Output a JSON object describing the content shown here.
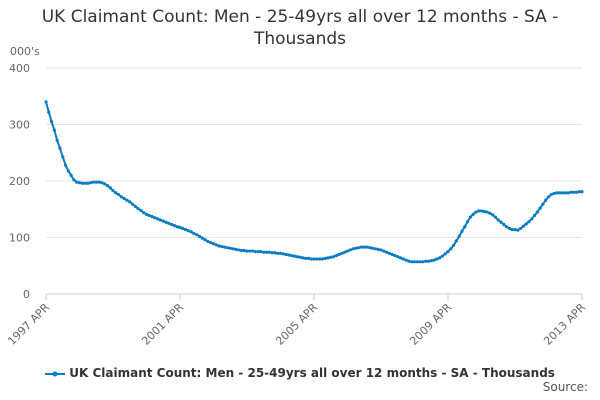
{
  "chart_data": {
    "type": "line",
    "title": "UK Claimant Count: Men - 25-49yrs all over 12 months - SA - Thousands",
    "y_label": "000's",
    "source": "Source:",
    "categories": [
      "1997 APR",
      null,
      null,
      null,
      null,
      null,
      null,
      null,
      null,
      null,
      null,
      null,
      null,
      null,
      null,
      null,
      null,
      null,
      null,
      null,
      null,
      null,
      null,
      null,
      null,
      null,
      null,
      null,
      null,
      null,
      null,
      null,
      null,
      null,
      null,
      null,
      null,
      null,
      null,
      null,
      null,
      null,
      null,
      null,
      null,
      null,
      null,
      null,
      "2001 APR",
      null,
      null,
      null,
      null,
      null,
      null,
      null,
      null,
      null,
      null,
      null,
      null,
      null,
      null,
      null,
      null,
      null,
      null,
      null,
      null,
      null,
      null,
      null,
      null,
      null,
      null,
      null,
      null,
      null,
      null,
      null,
      null,
      null,
      null,
      null,
      null,
      null,
      null,
      null,
      null,
      null,
      null,
      null,
      null,
      null,
      null,
      null,
      "2005 APR",
      null,
      null,
      null,
      null,
      null,
      null,
      null,
      null,
      null,
      null,
      null,
      null,
      null,
      null,
      null,
      null,
      null,
      null,
      null,
      null,
      null,
      null,
      null,
      null,
      null,
      null,
      null,
      null,
      null,
      null,
      null,
      null,
      null,
      null,
      null,
      null,
      null,
      null,
      null,
      null,
      null,
      null,
      null,
      null,
      null,
      null,
      null,
      "2009 APR",
      null,
      null,
      null,
      null,
      null,
      null,
      null,
      null,
      null,
      null,
      null,
      null,
      null,
      null,
      null,
      null,
      null,
      null,
      null,
      null,
      null,
      null,
      null,
      null,
      null,
      null,
      null,
      null,
      null,
      null,
      null,
      null,
      null,
      null,
      null,
      null,
      null,
      null,
      null,
      null,
      null,
      null,
      null,
      null,
      null,
      null,
      null,
      "2013 APR"
    ],
    "series": [
      {
        "name": "UK Claimant Count: Men - 25-49yrs all over 12 months - SA - Thousands",
        "color": "#0a7dc2",
        "values": [
          340,
          322,
          305,
          290,
          272,
          258,
          243,
          228,
          218,
          210,
          202,
          198,
          197,
          196,
          196,
          196,
          197,
          198,
          198,
          198,
          197,
          195,
          192,
          188,
          183,
          179,
          176,
          172,
          169,
          166,
          163,
          159,
          155,
          151,
          148,
          144,
          141,
          139,
          137,
          135,
          133,
          131,
          129,
          127,
          125,
          123,
          121,
          119,
          118,
          116,
          114,
          112,
          110,
          107,
          105,
          102,
          99,
          96,
          93,
          91,
          89,
          87,
          85,
          84,
          83,
          82,
          81,
          80,
          79,
          78,
          77,
          77,
          76,
          76,
          76,
          75,
          75,
          75,
          74,
          74,
          74,
          73,
          73,
          72,
          72,
          71,
          70,
          69,
          68,
          67,
          66,
          65,
          64,
          63,
          63,
          62,
          62,
          62,
          62,
          62,
          63,
          64,
          65,
          66,
          68,
          70,
          72,
          74,
          76,
          78,
          80,
          81,
          82,
          83,
          83,
          83,
          82,
          81,
          80,
          79,
          78,
          76,
          74,
          72,
          70,
          68,
          66,
          64,
          62,
          60,
          58,
          57,
          57,
          57,
          57,
          57,
          58,
          58,
          59,
          60,
          62,
          64,
          67,
          71,
          75,
          80,
          86,
          94,
          102,
          111,
          119,
          128,
          136,
          141,
          145,
          147,
          147,
          146,
          145,
          143,
          140,
          136,
          131,
          127,
          123,
          119,
          116,
          114,
          114,
          113,
          116,
          120,
          124,
          128,
          133,
          139,
          145,
          152,
          159,
          166,
          172,
          176,
          178,
          179,
          179,
          179,
          179,
          179,
          180,
          180,
          180,
          181,
          181
        ]
      }
    ],
    "ylim": [
      0,
      400
    ],
    "yticks": [
      0,
      100,
      200,
      300,
      400
    ],
    "grid": true
  }
}
